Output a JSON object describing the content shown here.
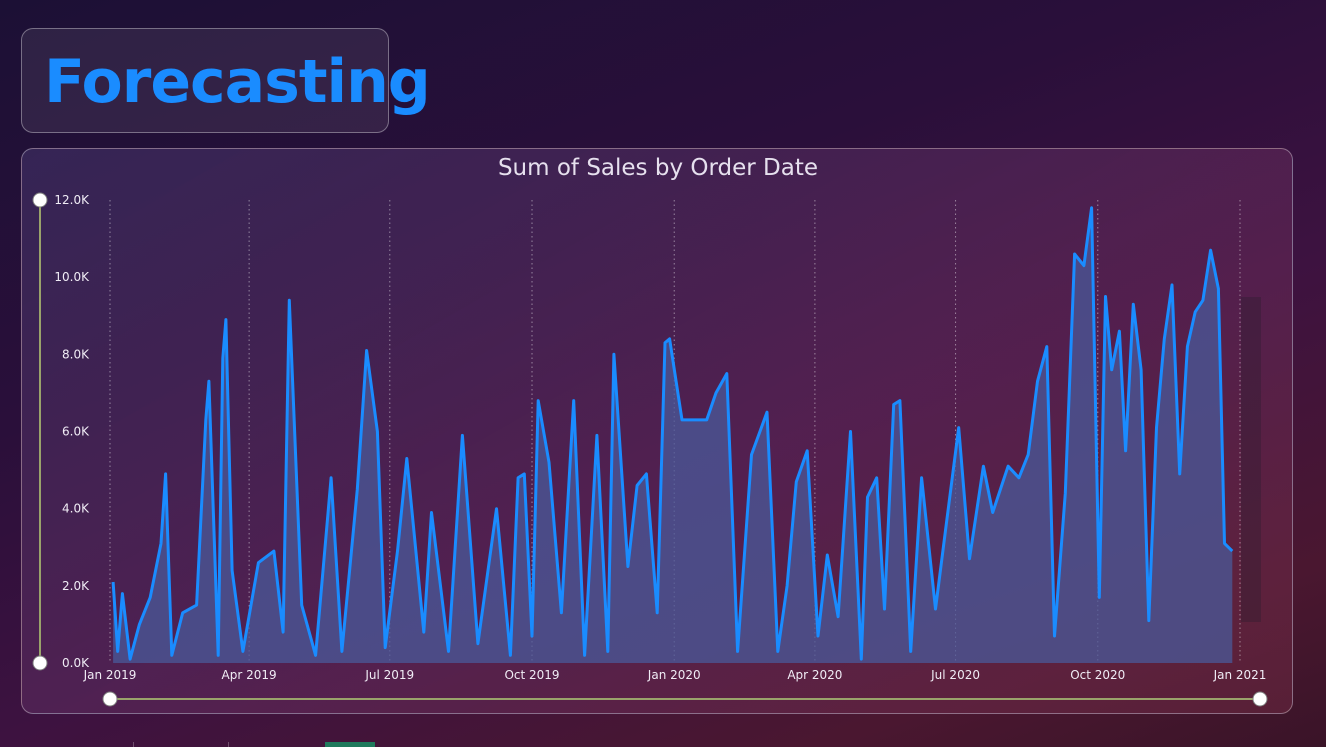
{
  "header": {
    "title": "Forecasting"
  },
  "chart_data": {
    "type": "area",
    "title": "Sum of Sales by Order Date",
    "xlabel": "",
    "ylabel": "",
    "x_range": [
      "2019-01-01",
      "2021-01-01"
    ],
    "ylim": [
      0,
      12000
    ],
    "y_ticks": [
      "0.0K",
      "2.0K",
      "4.0K",
      "6.0K",
      "8.0K",
      "10.0K",
      "12.0K"
    ],
    "x_ticks": [
      "Jan 2019",
      "Apr 2019",
      "Jul 2019",
      "Oct 2019",
      "Jan 2020",
      "Apr 2020",
      "Jul 2020",
      "Oct 2020",
      "Jan 2021"
    ],
    "grid": "vertical dotted",
    "line_color": "#1a8cff",
    "fill_color": "#4a5a9a",
    "series": [
      {
        "name": "",
        "points": [
          [
            "2019-01-03",
            2100
          ],
          [
            "2019-01-06",
            300
          ],
          [
            "2019-01-09",
            1800
          ],
          [
            "2019-01-14",
            100
          ],
          [
            "2019-01-20",
            1000
          ],
          [
            "2019-01-27",
            1700
          ],
          [
            "2019-02-03",
            3100
          ],
          [
            "2019-02-06",
            4900
          ],
          [
            "2019-02-10",
            200
          ],
          [
            "2019-02-17",
            1300
          ],
          [
            "2019-02-26",
            1500
          ],
          [
            "2019-03-04",
            6300
          ],
          [
            "2019-03-06",
            7300
          ],
          [
            "2019-03-12",
            200
          ],
          [
            "2019-03-15",
            7900
          ],
          [
            "2019-03-17",
            8900
          ],
          [
            "2019-03-21",
            2400
          ],
          [
            "2019-03-28",
            300
          ],
          [
            "2019-04-07",
            2600
          ],
          [
            "2019-04-17",
            2900
          ],
          [
            "2019-04-23",
            800
          ],
          [
            "2019-04-27",
            9400
          ],
          [
            "2019-05-05",
            1500
          ],
          [
            "2019-05-14",
            200
          ],
          [
            "2019-05-24",
            4800
          ],
          [
            "2019-05-31",
            300
          ],
          [
            "2019-06-10",
            4500
          ],
          [
            "2019-06-16",
            8100
          ],
          [
            "2019-06-23",
            6000
          ],
          [
            "2019-06-28",
            400
          ],
          [
            "2019-07-06",
            2900
          ],
          [
            "2019-07-12",
            5300
          ],
          [
            "2019-07-23",
            800
          ],
          [
            "2019-07-28",
            3900
          ],
          [
            "2019-08-08",
            300
          ],
          [
            "2019-08-17",
            5900
          ],
          [
            "2019-08-27",
            500
          ],
          [
            "2019-09-08",
            4000
          ],
          [
            "2019-09-17",
            200
          ],
          [
            "2019-09-22",
            4800
          ],
          [
            "2019-09-26",
            4900
          ],
          [
            "2019-10-01",
            700
          ],
          [
            "2019-10-05",
            6800
          ],
          [
            "2019-10-12",
            5200
          ],
          [
            "2019-10-20",
            1300
          ],
          [
            "2019-10-28",
            6800
          ],
          [
            "2019-11-04",
            200
          ],
          [
            "2019-11-12",
            5900
          ],
          [
            "2019-11-19",
            300
          ],
          [
            "2019-11-23",
            8000
          ],
          [
            "2019-12-02",
            2500
          ],
          [
            "2019-12-08",
            4600
          ],
          [
            "2019-12-14",
            4900
          ],
          [
            "2019-12-21",
            1300
          ],
          [
            "2019-12-26",
            8300
          ],
          [
            "2019-12-29",
            8400
          ],
          [
            "2020-01-06",
            6300
          ],
          [
            "2020-01-14",
            6300
          ],
          [
            "2020-01-22",
            6300
          ],
          [
            "2020-01-28",
            7000
          ],
          [
            "2020-02-04",
            7500
          ],
          [
            "2020-02-11",
            300
          ],
          [
            "2020-02-20",
            5400
          ],
          [
            "2020-03-01",
            6500
          ],
          [
            "2020-03-08",
            300
          ],
          [
            "2020-03-14",
            2000
          ],
          [
            "2020-03-20",
            4700
          ],
          [
            "2020-03-27",
            5500
          ],
          [
            "2020-04-03",
            700
          ],
          [
            "2020-04-09",
            2800
          ],
          [
            "2020-04-16",
            1200
          ],
          [
            "2020-04-24",
            6000
          ],
          [
            "2020-05-01",
            100
          ],
          [
            "2020-05-05",
            4300
          ],
          [
            "2020-05-11",
            4800
          ],
          [
            "2020-05-16",
            1400
          ],
          [
            "2020-05-22",
            6700
          ],
          [
            "2020-05-26",
            6800
          ],
          [
            "2020-06-02",
            300
          ],
          [
            "2020-06-09",
            4800
          ],
          [
            "2020-06-18",
            1400
          ],
          [
            "2020-06-25",
            3600
          ],
          [
            "2020-07-03",
            6100
          ],
          [
            "2020-07-10",
            2700
          ],
          [
            "2020-07-19",
            5100
          ],
          [
            "2020-07-25",
            3900
          ],
          [
            "2020-08-04",
            5100
          ],
          [
            "2020-08-11",
            4800
          ],
          [
            "2020-08-17",
            5400
          ],
          [
            "2020-08-23",
            7300
          ],
          [
            "2020-08-29",
            8200
          ],
          [
            "2020-09-03",
            700
          ],
          [
            "2020-09-10",
            4400
          ],
          [
            "2020-09-16",
            10600
          ],
          [
            "2020-09-22",
            10300
          ],
          [
            "2020-09-27",
            11800
          ],
          [
            "2020-10-02",
            1700
          ],
          [
            "2020-10-06",
            9500
          ],
          [
            "2020-10-10",
            7600
          ],
          [
            "2020-10-15",
            8600
          ],
          [
            "2020-10-19",
            5500
          ],
          [
            "2020-10-24",
            9300
          ],
          [
            "2020-10-29",
            7600
          ],
          [
            "2020-11-03",
            1100
          ],
          [
            "2020-11-08",
            6100
          ],
          [
            "2020-11-13",
            8400
          ],
          [
            "2020-11-18",
            9800
          ],
          [
            "2020-11-23",
            4900
          ],
          [
            "2020-11-28",
            8200
          ],
          [
            "2020-12-03",
            9100
          ],
          [
            "2020-12-08",
            9400
          ],
          [
            "2020-12-13",
            10700
          ],
          [
            "2020-12-18",
            9700
          ],
          [
            "2020-12-22",
            3100
          ],
          [
            "2020-12-27",
            2900
          ]
        ]
      }
    ]
  }
}
